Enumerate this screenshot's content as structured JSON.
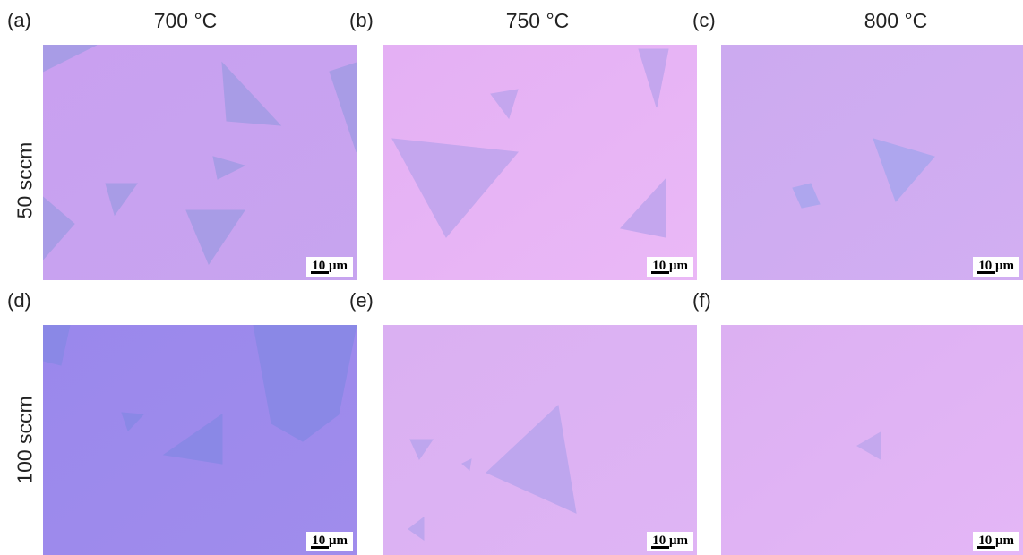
{
  "columns": [
    {
      "title": "700 °C"
    },
    {
      "title": "750 °C"
    },
    {
      "title": "800 °C"
    }
  ],
  "rows": [
    {
      "label": "50 sccm"
    },
    {
      "label": "100 sccm"
    }
  ],
  "panels": [
    {
      "label": "(a)",
      "scale_bar": "10 μm"
    },
    {
      "label": "(b)",
      "scale_bar": "10 μm"
    },
    {
      "label": "(c)",
      "scale_bar": "10 μm"
    },
    {
      "label": "(d)",
      "scale_bar": "10 μm"
    },
    {
      "label": "(e)",
      "scale_bar": "10 μm"
    },
    {
      "label": "(f)",
      "scale_bar": "10 μm"
    }
  ]
}
